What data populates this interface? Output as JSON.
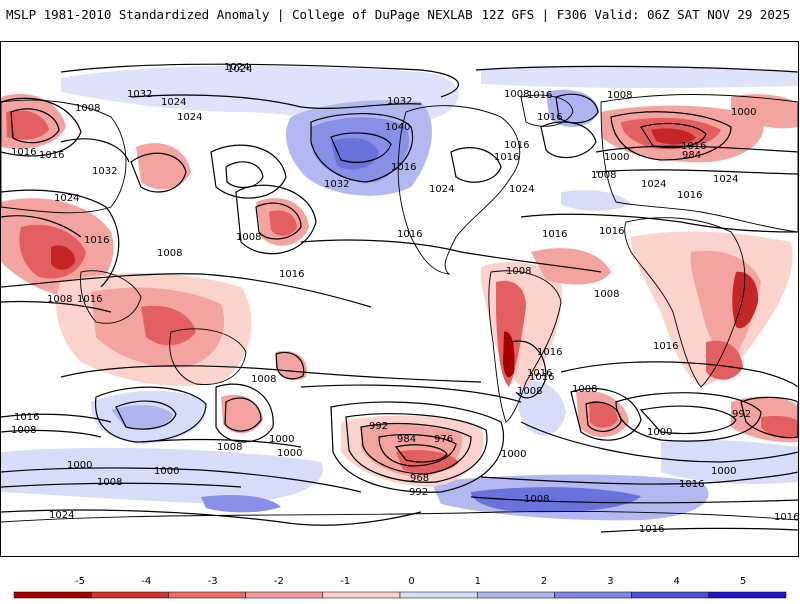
{
  "header": {
    "left_title": "MSLP 1981-2010 Standardized Anomaly | College of DuPage NEXLAB",
    "right_title": "12Z GFS | F306 Valid: 06Z SAT NOV 29 2025"
  },
  "map": {
    "field": "MSLP standardized anomaly",
    "isobar_labels": [
      "1024",
      "1032",
      "1024",
      "1024",
      "1016",
      "1032",
      "1016",
      "1024",
      "1016",
      "1008",
      "1016",
      "1008",
      "1024",
      "1032",
      "1040",
      "1032",
      "1016",
      "1024",
      "1016",
      "1016",
      "1024",
      "1008",
      "1016",
      "1008",
      "1016",
      "1008",
      "1000",
      "984",
      "1000",
      "1024",
      "1024",
      "1016",
      "1008",
      "1016",
      "1008",
      "1016",
      "1016",
      "1016",
      "1016",
      "1016",
      "1008",
      "1008",
      "1016",
      "1016",
      "1008",
      "1008",
      "1016",
      "1008",
      "1008",
      "1000",
      "1000",
      "1000",
      "1000",
      "1008",
      "1024",
      "1016",
      "1008",
      "992",
      "984",
      "976",
      "968",
      "992",
      "1000",
      "1000",
      "1000",
      "1008",
      "1016",
      "1016",
      "992",
      "1016"
    ]
  },
  "colorbar": {
    "ticks": [
      "-5",
      "-4",
      "-3",
      "-2",
      "-1",
      "0",
      "1",
      "2",
      "3",
      "4",
      "5"
    ],
    "colors": [
      "#a80000",
      "#d43030",
      "#ea6a6a",
      "#f49e9e",
      "#fbd2cc",
      "#ffffff",
      "#d8dcf8",
      "#aeb4f0",
      "#8088e4",
      "#4a4fd8",
      "#1f14c8"
    ]
  }
}
